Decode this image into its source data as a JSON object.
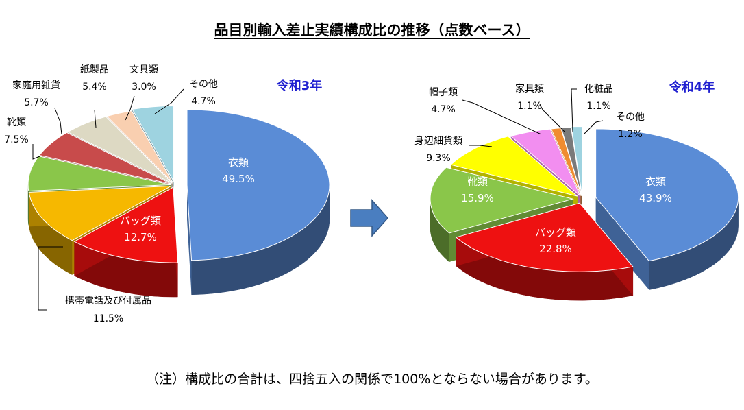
{
  "title": "品目別輸入差止実績構成比の推移（点数ベース）",
  "footnote": "（注）構成比の合計は、四捨五入の関係で100%とならない場合があります。",
  "colors": {
    "year_label": "#1f1fd0",
    "arrow": "#4a7ec0"
  },
  "chart_data": [
    {
      "type": "pie",
      "year_label": "令和3年",
      "unit": "%",
      "slices": [
        {
          "name": "衣類",
          "value": 49.5,
          "label": "49.5%",
          "color": "#5a8cd6"
        },
        {
          "name": "バッグ類",
          "value": 12.7,
          "label": "12.7%",
          "color": "#ee1111"
        },
        {
          "name": "携帯電話及び付属品",
          "value": 11.5,
          "label": "11.5%",
          "color": "#f6b800"
        },
        {
          "name": "靴類",
          "value": 7.5,
          "label": "7.5%",
          "color": "#8ac64a"
        },
        {
          "name": "家庭用雑貨",
          "value": 5.7,
          "label": "5.7%",
          "color": "#c84b4b"
        },
        {
          "name": "紙製品",
          "value": 5.4,
          "label": "5.4%",
          "color": "#ddd9c3"
        },
        {
          "name": "文具類",
          "value": 3.0,
          "label": "3.0%",
          "color": "#f9cfb0"
        },
        {
          "name": "その他",
          "value": 4.7,
          "label": "4.7%",
          "color": "#9ed3e0"
        }
      ]
    },
    {
      "type": "pie",
      "year_label": "令和4年",
      "unit": "%",
      "slices": [
        {
          "name": "衣類",
          "value": 43.9,
          "label": "43.9%",
          "color": "#5a8cd6"
        },
        {
          "name": "バッグ類",
          "value": 22.8,
          "label": "22.8%",
          "color": "#ee1111"
        },
        {
          "name": "靴類",
          "value": 15.9,
          "label": "15.9%",
          "color": "#8ac64a"
        },
        {
          "name": "身辺細貨類",
          "value": 9.3,
          "label": "9.3%",
          "color": "#ffff00"
        },
        {
          "name": "帽子類",
          "value": 4.7,
          "label": "4.7%",
          "color": "#f28ef0"
        },
        {
          "name": "家具類",
          "value": 1.1,
          "label": "1.1%",
          "color": "#f08c30"
        },
        {
          "name": "化粧品",
          "value": 1.1,
          "label": "1.1%",
          "color": "#7a7a7a"
        },
        {
          "name": "その他",
          "value": 1.2,
          "label": "1.2%",
          "color": "#9ed3e0"
        }
      ]
    }
  ]
}
